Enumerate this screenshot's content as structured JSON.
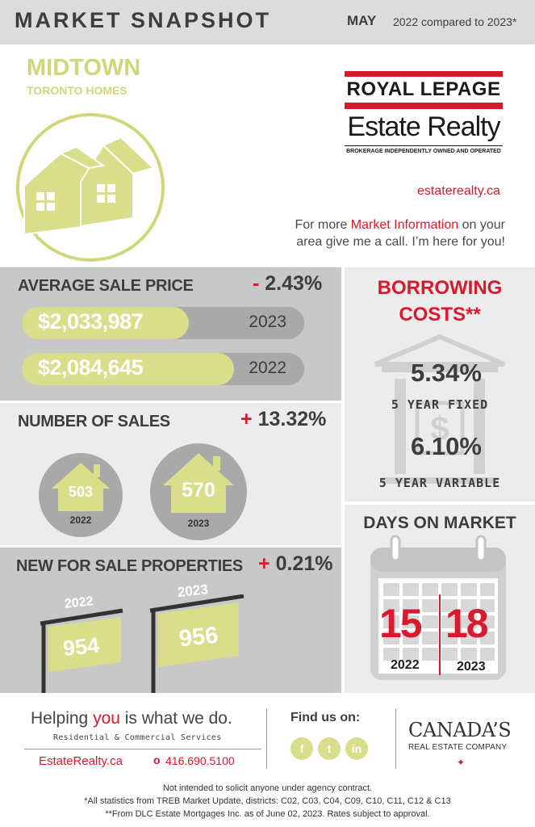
{
  "header": {
    "title": "MARKET SNAPSHOT",
    "month": "MAY",
    "compare": "2022 compared to 2023*"
  },
  "area": {
    "name": "MIDTOWN",
    "subtitle": "TORONTO HOMES"
  },
  "brand": {
    "logo_line1": "ROYAL LEPAGE",
    "logo_line2": "Estate Realty",
    "logo_line3": "BROKERAGE INDEPENDENTLY OWNED AND OPERATED",
    "website": "estaterealty.ca",
    "info_pre": "For more ",
    "info_highlight": "Market Information",
    "info_post1": " on your",
    "info_line2": "area give me a call. I’m here for you!"
  },
  "avg_price": {
    "title": "AVERAGE SALE PRICE",
    "change_sign": "-",
    "change_value": "2.43%",
    "bars": [
      {
        "value": "$2,033,987",
        "year": "2023",
        "fill": 0.59
      },
      {
        "value": "$2,084,645",
        "year": "2022",
        "fill": 0.75
      }
    ]
  },
  "sales": {
    "title": "NUMBER OF SALES",
    "change_sign": "+",
    "change_value": "13.32%",
    "items": [
      {
        "value": "503",
        "year": "2022"
      },
      {
        "value": "570",
        "year": "2023"
      }
    ]
  },
  "new_listings": {
    "title": "NEW FOR SALE PROPERTIES",
    "change_sign": "+",
    "change_value": "0.21%",
    "items": [
      {
        "value": "954",
        "year": "2022"
      },
      {
        "value": "956",
        "year": "2023"
      }
    ]
  },
  "borrowing": {
    "title_line1": "BORROWING",
    "title_line2": "COSTS**",
    "fixed_rate": "5.34%",
    "fixed_label": "5 YEAR FIXED",
    "variable_rate": "6.10%",
    "variable_label": "5 YEAR VARIABLE"
  },
  "days_on_market": {
    "title": "DAYS ON MARKET",
    "items": [
      {
        "value": "15",
        "year": "2022"
      },
      {
        "value": "18",
        "year": "2023"
      }
    ]
  },
  "footer": {
    "tagline_pre": "Helping ",
    "tagline_highlight": "you",
    "tagline_post": " is what we do.",
    "services": "Residential & Commercial Services",
    "website": "EstateRealty.ca",
    "phone_bullet": "o",
    "phone": "416.690.5100",
    "find_us": "Find us on:",
    "social": [
      "f",
      "t",
      "in"
    ],
    "company_line1": "CANADA’S",
    "company_line2": "REAL ESTATE COMPANY"
  },
  "disclaimers": [
    "Not intended to solicit anyone under agency contract.",
    "*All statistics from TREB Market Update, districts: C02, C03, C04, C09, C10, C11, C12 & C13",
    "**From DLC Estate Mortgages Inc. as of June 02, 2023. Rates subject to approval."
  ],
  "colors": {
    "accent_red": "#d9192e",
    "accent_lime": "#d8de8a",
    "panel_gray": "#c8c8c8",
    "panel_light": "#ececec"
  }
}
